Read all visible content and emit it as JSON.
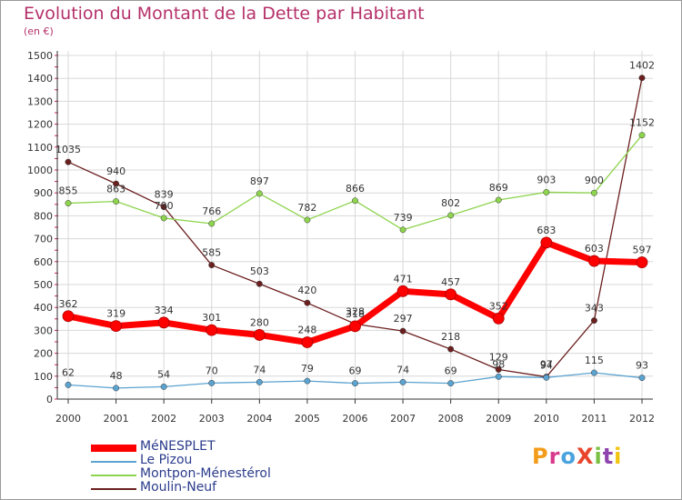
{
  "title": "Evolution du Montant de la Dette par Habitant",
  "unit": "(en €)",
  "chart_data": {
    "type": "line",
    "x": [
      "2000",
      "2001",
      "2002",
      "2003",
      "2004",
      "2005",
      "2006",
      "2007",
      "2008",
      "2009",
      "2010",
      "2011",
      "2012"
    ],
    "ylim": [
      0,
      1500
    ],
    "yticks": [
      0,
      100,
      200,
      300,
      400,
      500,
      600,
      700,
      800,
      900,
      1000,
      1100,
      1200,
      1300,
      1400,
      1500
    ],
    "grid": true,
    "legend_position": "bottom-left",
    "series": [
      {
        "name": "MéNESPLET",
        "color": "#ff0000",
        "values": [
          362,
          319,
          334,
          301,
          280,
          248,
          318,
          471,
          457,
          352,
          683,
          603,
          597
        ]
      },
      {
        "name": "Le Pizou",
        "color": "#5ba3d0",
        "values": [
          62,
          48,
          54,
          70,
          74,
          79,
          69,
          74,
          69,
          98,
          94,
          115,
          93
        ]
      },
      {
        "name": "Montpon-Ménestérol",
        "color": "#8ed44f",
        "values": [
          855,
          863,
          790,
          766,
          897,
          782,
          866,
          739,
          802,
          869,
          903,
          900,
          1152
        ]
      },
      {
        "name": "Moulin-Neuf",
        "color": "#6b1f1f",
        "values": [
          1035,
          940,
          839,
          585,
          503,
          420,
          328,
          297,
          218,
          129,
          97,
          343,
          1402
        ]
      }
    ]
  },
  "logo": {
    "text": "ProXiti",
    "colors": [
      "#f39c1a",
      "#d83a8c",
      "#4aa3df",
      "#e8452c",
      "#7ac143",
      "#8e44ad",
      "#f1c40f"
    ]
  }
}
